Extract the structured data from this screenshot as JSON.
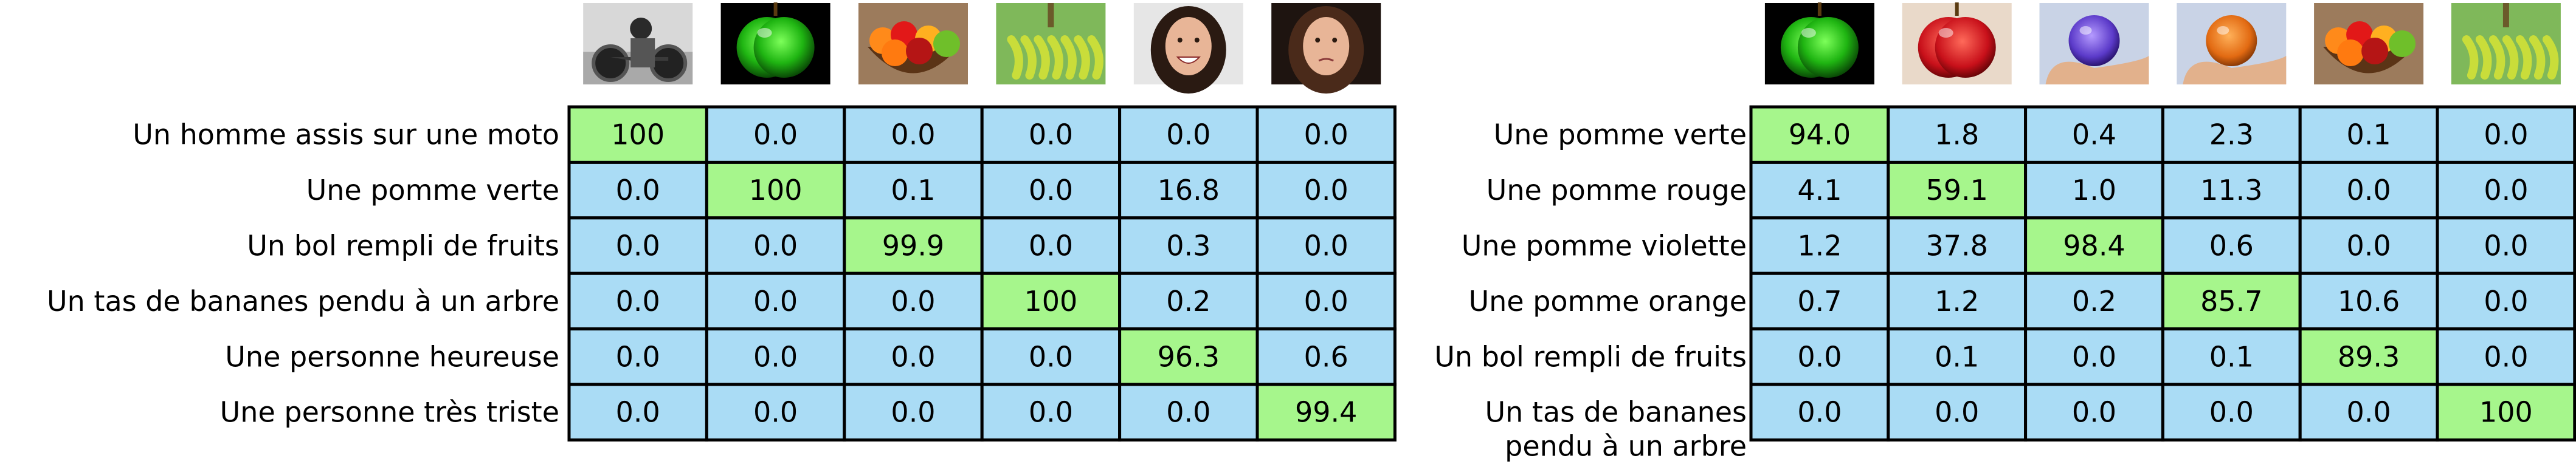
{
  "colors": {
    "cell_default": "#aadcf5",
    "cell_highlight": "#a6f68c",
    "border": "#000000",
    "text": "#000000"
  },
  "chart_data": [
    {
      "type": "heatmap",
      "title": "",
      "images": [
        "motorcycle-rider-photo",
        "green-apple-photo",
        "fruit-bowl-photo",
        "bananas-photo",
        "happy-woman-photo",
        "sad-woman-photo"
      ],
      "rows": [
        "Un homme assis sur une moto",
        "Une pomme verte",
        "Un bol rempli de fruits",
        "Un tas de bananes pendu à un arbre",
        "Une personne heureuse",
        "Une personne très triste"
      ],
      "values": [
        [
          "100",
          "0.0",
          "0.0",
          "0.0",
          "0.0",
          "0.0"
        ],
        [
          "0.0",
          "100",
          "0.1",
          "0.0",
          "16.8",
          "0.0"
        ],
        [
          "0.0",
          "0.0",
          "99.9",
          "0.0",
          "0.3",
          "0.0"
        ],
        [
          "0.0",
          "0.0",
          "0.0",
          "100",
          "0.2",
          "0.0"
        ],
        [
          "0.0",
          "0.0",
          "0.0",
          "0.0",
          "96.3",
          "0.6"
        ],
        [
          "0.0",
          "0.0",
          "0.0",
          "0.0",
          "0.0",
          "99.4"
        ]
      ],
      "highlight": [
        [
          0,
          0
        ],
        [
          1,
          1
        ],
        [
          2,
          2
        ],
        [
          3,
          3
        ],
        [
          4,
          4
        ],
        [
          5,
          5
        ]
      ]
    },
    {
      "type": "heatmap",
      "title": "",
      "images": [
        "green-apple-photo",
        "red-apple-photo",
        "purple-apple-photo",
        "orange-apple-photo",
        "fruit-bowl-photo",
        "bananas-photo"
      ],
      "rows": [
        "Une pomme verte",
        "Une pomme rouge",
        "Une pomme violette",
        "Une pomme orange",
        "Un bol rempli de fruits",
        "Un tas de bananes\npendu à un arbre"
      ],
      "values": [
        [
          "94.0",
          "1.8",
          "0.4",
          "2.3",
          "0.1",
          "0.0"
        ],
        [
          "4.1",
          "59.1",
          "1.0",
          "11.3",
          "0.0",
          "0.0"
        ],
        [
          "1.2",
          "37.8",
          "98.4",
          "0.6",
          "0.0",
          "0.0"
        ],
        [
          "0.7",
          "1.2",
          "0.2",
          "85.7",
          "10.6",
          "0.0"
        ],
        [
          "0.0",
          "0.1",
          "0.0",
          "0.1",
          "89.3",
          "0.0"
        ],
        [
          "0.0",
          "0.0",
          "0.0",
          "0.0",
          "0.0",
          "100"
        ]
      ],
      "highlight": [
        [
          0,
          0
        ],
        [
          1,
          1
        ],
        [
          2,
          2
        ],
        [
          3,
          3
        ],
        [
          4,
          4
        ],
        [
          5,
          5
        ]
      ]
    }
  ]
}
